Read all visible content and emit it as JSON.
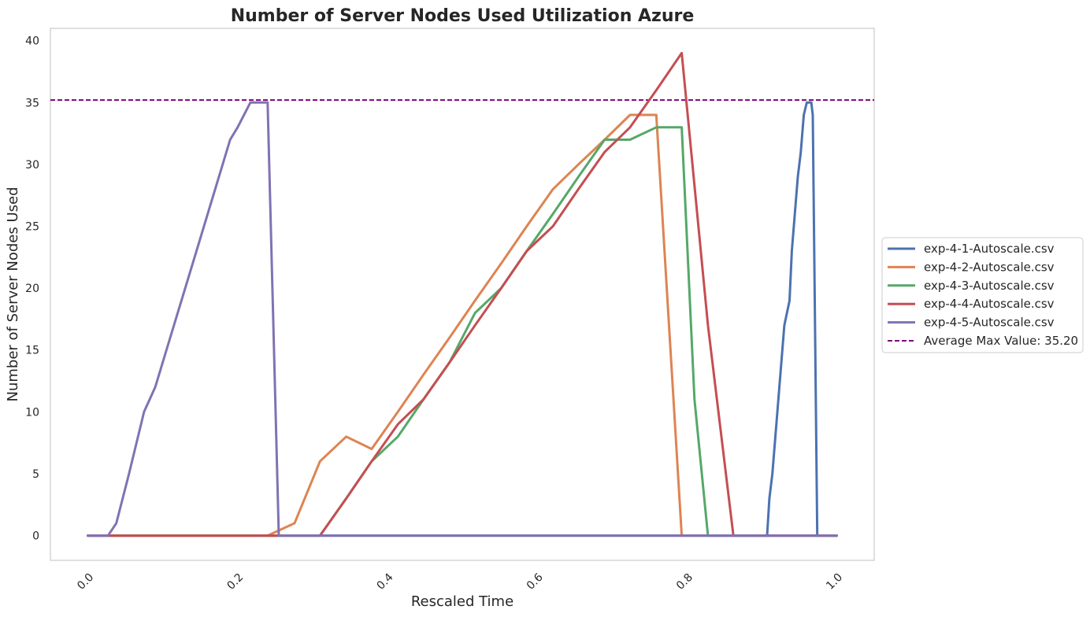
{
  "chart_data": {
    "type": "line",
    "title": "Number of Server Nodes Used Utilization Azure",
    "xlabel": "Rescaled Time",
    "ylabel": "Number of Server Nodes Used",
    "xlim": [
      -0.05,
      1.05
    ],
    "ylim": [
      -2,
      41
    ],
    "xticks": [
      0.0,
      0.2,
      0.4,
      0.6,
      0.8,
      1.0
    ],
    "xtick_labels": [
      "0.0",
      "0.2",
      "0.4",
      "0.6",
      "0.8",
      "1.0"
    ],
    "yticks": [
      0,
      5,
      10,
      15,
      20,
      25,
      30,
      35,
      40
    ],
    "ytick_labels": [
      "0",
      "5",
      "10",
      "15",
      "20",
      "25",
      "30",
      "35",
      "40"
    ],
    "grid": false,
    "legend_position": "right",
    "series": [
      {
        "name": "exp-4-1-Autoscale.csv",
        "color": "#4c72b0",
        "points": [
          [
            0.0,
            0
          ],
          [
            0.907,
            0
          ],
          [
            0.91,
            3
          ],
          [
            0.914,
            5
          ],
          [
            0.922,
            11
          ],
          [
            0.93,
            17
          ],
          [
            0.937,
            19
          ],
          [
            0.94,
            23
          ],
          [
            0.948,
            29
          ],
          [
            0.952,
            31
          ],
          [
            0.956,
            34
          ],
          [
            0.96,
            35
          ],
          [
            0.966,
            35
          ],
          [
            0.968,
            34
          ],
          [
            0.974,
            0
          ],
          [
            1.0,
            0
          ]
        ]
      },
      {
        "name": "exp-4-2-Autoscale.csv",
        "color": "#dd8452",
        "points": [
          [
            0.0,
            0
          ],
          [
            0.24,
            0
          ],
          [
            0.276,
            1
          ],
          [
            0.31,
            6
          ],
          [
            0.345,
            8
          ],
          [
            0.379,
            7
          ],
          [
            0.414,
            10
          ],
          [
            0.448,
            13
          ],
          [
            0.483,
            16
          ],
          [
            0.517,
            19
          ],
          [
            0.552,
            22
          ],
          [
            0.586,
            25
          ],
          [
            0.621,
            28
          ],
          [
            0.655,
            30
          ],
          [
            0.69,
            32
          ],
          [
            0.724,
            34
          ],
          [
            0.759,
            34
          ],
          [
            0.793,
            0
          ],
          [
            1.0,
            0
          ]
        ]
      },
      {
        "name": "exp-4-3-Autoscale.csv",
        "color": "#55a868",
        "points": [
          [
            0.0,
            0
          ],
          [
            0.31,
            0
          ],
          [
            0.345,
            3
          ],
          [
            0.379,
            6
          ],
          [
            0.414,
            8
          ],
          [
            0.448,
            11
          ],
          [
            0.483,
            14
          ],
          [
            0.517,
            18
          ],
          [
            0.552,
            20
          ],
          [
            0.586,
            23
          ],
          [
            0.621,
            26
          ],
          [
            0.655,
            29
          ],
          [
            0.69,
            32
          ],
          [
            0.724,
            32
          ],
          [
            0.759,
            33
          ],
          [
            0.793,
            33
          ],
          [
            0.81,
            11
          ],
          [
            0.828,
            0
          ],
          [
            1.0,
            0
          ]
        ]
      },
      {
        "name": "exp-4-4-Autoscale.csv",
        "color": "#c44e52",
        "points": [
          [
            0.0,
            0
          ],
          [
            0.31,
            0
          ],
          [
            0.345,
            3
          ],
          [
            0.379,
            6
          ],
          [
            0.414,
            9
          ],
          [
            0.448,
            11
          ],
          [
            0.483,
            14
          ],
          [
            0.517,
            17
          ],
          [
            0.552,
            20
          ],
          [
            0.586,
            23
          ],
          [
            0.621,
            25
          ],
          [
            0.655,
            28
          ],
          [
            0.69,
            31
          ],
          [
            0.724,
            33
          ],
          [
            0.759,
            36
          ],
          [
            0.793,
            39
          ],
          [
            0.828,
            17
          ],
          [
            0.862,
            0
          ],
          [
            1.0,
            0
          ]
        ]
      },
      {
        "name": "exp-4-5-Autoscale.csv",
        "color": "#8172b3",
        "points": [
          [
            0.0,
            0
          ],
          [
            0.027,
            0
          ],
          [
            0.038,
            1
          ],
          [
            0.055,
            5
          ],
          [
            0.075,
            10
          ],
          [
            0.09,
            12
          ],
          [
            0.11,
            16
          ],
          [
            0.13,
            20
          ],
          [
            0.15,
            24
          ],
          [
            0.17,
            28
          ],
          [
            0.19,
            32
          ],
          [
            0.2,
            33
          ],
          [
            0.217,
            35
          ],
          [
            0.235,
            35
          ],
          [
            0.24,
            35
          ],
          [
            0.255,
            0
          ],
          [
            1.0,
            0
          ]
        ]
      }
    ],
    "reference_line": {
      "name": "Average Max Value: 35.20",
      "value": 35.2,
      "color": "#800080",
      "style": "dashed"
    }
  }
}
